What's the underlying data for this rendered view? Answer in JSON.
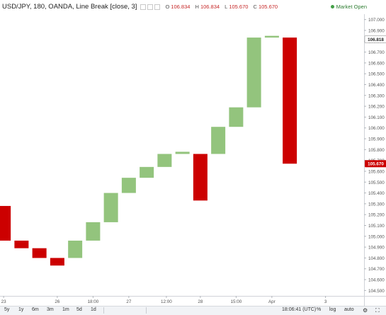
{
  "header": {
    "title": "USD/JPY, 180, OANDA, Line Break [close, 3]",
    "ohlc": [
      {
        "label": "O",
        "value": "106.834"
      },
      {
        "label": "H",
        "value": "106.834"
      },
      {
        "label": "L",
        "value": "105.670"
      },
      {
        "label": "C",
        "value": "105.670"
      }
    ],
    "status": "Market Open"
  },
  "colors": {
    "up": "#93c47d",
    "down": "#cc0000",
    "axis_text": "#555555",
    "status": "#43a047"
  },
  "chart_data": {
    "type": "line_break",
    "symbol": "USD/JPY",
    "interval": "180",
    "source": "OANDA",
    "bricks": [
      {
        "dir": "down",
        "open": 105.28,
        "close": 104.96
      },
      {
        "dir": "down",
        "open": 104.96,
        "close": 104.89
      },
      {
        "dir": "down",
        "open": 104.89,
        "close": 104.8
      },
      {
        "dir": "down",
        "open": 104.8,
        "close": 104.73
      },
      {
        "dir": "up",
        "open": 104.8,
        "close": 104.96
      },
      {
        "dir": "up",
        "open": 104.96,
        "close": 105.13
      },
      {
        "dir": "up",
        "open": 105.13,
        "close": 105.4
      },
      {
        "dir": "up",
        "open": 105.4,
        "close": 105.54
      },
      {
        "dir": "up",
        "open": 105.54,
        "close": 105.64
      },
      {
        "dir": "up",
        "open": 105.64,
        "close": 105.76
      },
      {
        "dir": "up",
        "open": 105.76,
        "close": 105.78
      },
      {
        "dir": "down",
        "open": 105.76,
        "close": 105.33
      },
      {
        "dir": "up",
        "open": 105.76,
        "close": 106.01
      },
      {
        "dir": "up",
        "open": 106.01,
        "close": 106.19
      },
      {
        "dir": "up",
        "open": 106.19,
        "close": 106.834
      },
      {
        "dir": "up",
        "open": 106.834,
        "close": 106.85
      },
      {
        "dir": "down",
        "open": 106.834,
        "close": 105.67
      }
    ],
    "ylim": [
      104.45,
      107.05
    ],
    "y_ticks": [
      "107.000",
      "106.900",
      "106.800",
      "106.700",
      "106.600",
      "106.500",
      "106.400",
      "106.300",
      "106.200",
      "106.100",
      "106.000",
      "105.900",
      "105.800",
      "105.700",
      "105.600",
      "105.500",
      "105.400",
      "105.300",
      "105.200",
      "105.100",
      "105.000",
      "104.900",
      "104.800",
      "104.700",
      "104.600",
      "104.500"
    ],
    "x_ticks": [
      {
        "label": "23",
        "pos": 0.5
      },
      {
        "label": "26",
        "pos": 3.5
      },
      {
        "label": "18:00",
        "pos": 5.5
      },
      {
        "label": "27",
        "pos": 7.5
      },
      {
        "label": "12:00",
        "pos": 9.6
      },
      {
        "label": "28",
        "pos": 11.5
      },
      {
        "label": "15:00",
        "pos": 13.5
      },
      {
        "label": "Apr",
        "pos": 15.5
      },
      {
        "label": "3",
        "pos": 18.5
      }
    ],
    "price_labels": [
      {
        "value": 106.818,
        "text": "106.818",
        "kind": "last-bar"
      },
      {
        "value": 105.67,
        "text": "105.670",
        "kind": "current"
      }
    ]
  },
  "bottom_bar": {
    "timeframes": [
      "5y",
      "1y",
      "6m",
      "3m",
      "1m",
      "5d",
      "1d"
    ],
    "clock": "18:06:41 (UTC)",
    "options": [
      "%",
      "log",
      "auto"
    ]
  }
}
